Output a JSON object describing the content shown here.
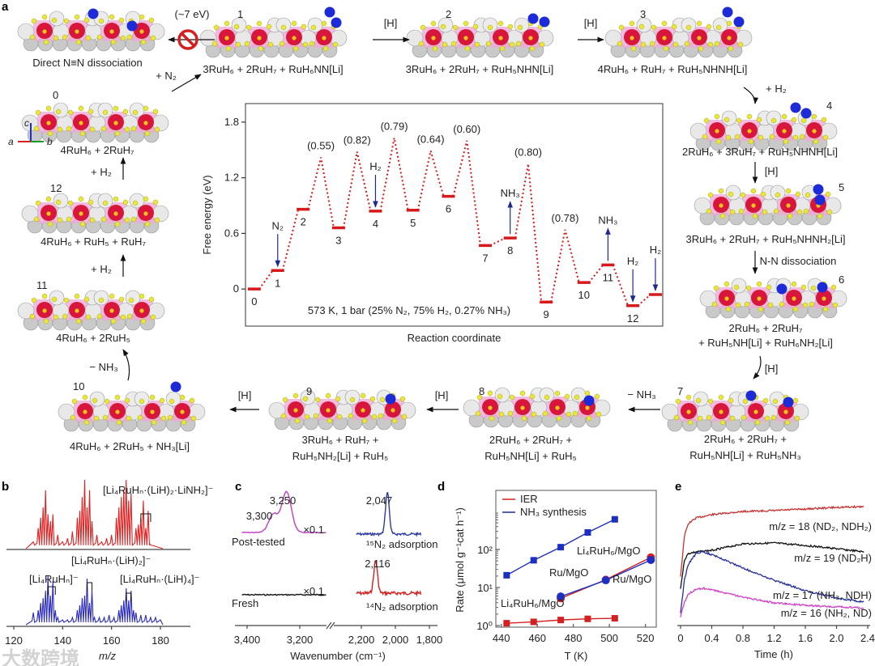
{
  "panel_labels": {
    "a": "a",
    "b": "b",
    "c": "c",
    "d": "d",
    "e": "e"
  },
  "panel_a": {
    "direct": {
      "caption": "Direct N≡N dissociation",
      "energy": "(~7 eV)"
    },
    "axes": {
      "a": "a",
      "b": "b",
      "c": "c"
    },
    "states": [
      {
        "id": "0",
        "formula": [
          "4RuH₆ + 2RuH₇"
        ]
      },
      {
        "id": "1",
        "formula": [
          "3RuH₆ + 2RuH₇ + RuH₆NN[Li]"
        ]
      },
      {
        "id": "2",
        "formula": [
          "3RuH₆ + 2RuH₇ + RuH₅NHN[Li]"
        ]
      },
      {
        "id": "3",
        "formula": [
          "4RuH₆ + RuH₇ + RuH₅NHNH[Li]"
        ]
      },
      {
        "id": "4",
        "formula": [
          "2RuH₆ + 3RuH₇ + RuH₅NHNH[Li]"
        ]
      },
      {
        "id": "5",
        "formula": [
          "3RuH₆ + 2RuH₇ + RuH₅NHNH₂[Li]"
        ]
      },
      {
        "id": "6",
        "formula": [
          "2RuH₆ + 2RuH₇",
          "+ RuH₅NH[Li] + RuH₆NH₂[Li]"
        ]
      },
      {
        "id": "7",
        "formula": [
          "2RuH₆ + 2RuH₇ +",
          "RuH₅NH[Li] + RuH₅NH₃"
        ]
      },
      {
        "id": "8",
        "formula": [
          "2RuH₆ + 2RuH₇ +",
          "RuH₅NH[Li] + RuH₅"
        ]
      },
      {
        "id": "9",
        "formula": [
          "3RuH₆ + RuH₇ +",
          "RuH₅NH₂[Li] + RuH₅"
        ]
      },
      {
        "id": "10",
        "formula": [
          "4RuH₆ + 2RuH₅ + NH₃[Li]"
        ]
      },
      {
        "id": "11",
        "formula": [
          "4RuH₆ + 2RuH₅"
        ]
      },
      {
        "id": "12",
        "formula": [
          "4RuH₆ + RuH₅ + RuH₇"
        ]
      }
    ],
    "steps": [
      "+ N₂",
      "[H]",
      "[H]",
      "+ H₂",
      "[H]",
      "N-N dissociation",
      "[H]",
      "− NH₃",
      "[H]",
      "[H]",
      "− NH₃",
      "+ H₂",
      "+ H₂"
    ]
  },
  "watermark": "大数跨境",
  "chart_data": [
    {
      "panel": "a",
      "type": "line",
      "title": "",
      "xlabel": "Reaction coordinate",
      "ylabel": "Free energy (eV)",
      "ylim": [
        -0.4,
        2.0
      ],
      "xlim": [
        -0.3,
        13.95
      ],
      "yticks": [
        0,
        0.6,
        1.2,
        1.8
      ],
      "ytick_labels": [
        "0",
        "0.6",
        "1.2",
        "1.8"
      ],
      "annotation": "573 K, 1 bar (25% N₂, 75% H₂, 0.27% NH₃)",
      "levels": [
        {
          "label": "0",
          "x": 0,
          "G": 0
        },
        {
          "label": "1",
          "x": 0.8,
          "G": 0.2
        },
        {
          "label": "2",
          "x": 1.67,
          "G": 0.86
        },
        {
          "label": "3",
          "x": 2.88,
          "G": 0.66
        },
        {
          "label": "4",
          "x": 4.14,
          "G": 0.84
        },
        {
          "label": "5",
          "x": 5.42,
          "G": 0.85
        },
        {
          "label": "6",
          "x": 6.63,
          "G": 1.0
        },
        {
          "label": "7",
          "x": 7.89,
          "G": 0.47
        },
        {
          "label": "8",
          "x": 8.74,
          "G": 0.55
        },
        {
          "label": "9",
          "x": 9.97,
          "G": -0.14
        },
        {
          "label": "10",
          "x": 11.26,
          "G": 0.07
        },
        {
          "label": "11",
          "x": 12.08,
          "G": 0.26
        },
        {
          "label": "12",
          "x": 12.93,
          "G": -0.18
        },
        {
          "label": "",
          "x": 13.7,
          "G": -0.06
        }
      ],
      "barriers": [
        {
          "after_level": 2,
          "G": 1.42,
          "label": "(0.55)"
        },
        {
          "after_level": 3,
          "G": 1.48,
          "label": "(0.82)"
        },
        {
          "after_level": 4,
          "G": 1.63,
          "label": "(0.79)"
        },
        {
          "after_level": 5,
          "G": 1.49,
          "label": "(0.64)"
        },
        {
          "after_level": 6,
          "G": 1.6,
          "label": "(0.60)"
        },
        {
          "after_level": 8,
          "G": 1.35,
          "label": "(0.80)"
        },
        {
          "after_level": 9,
          "G": 0.64,
          "label": "(0.78)"
        }
      ],
      "species_arrows": [
        {
          "label": "N₂",
          "level": 1,
          "dir": "down"
        },
        {
          "label": "H₂",
          "level": 4,
          "dir": "down"
        },
        {
          "label": "NH₃",
          "level": 8,
          "dir": "up"
        },
        {
          "label": "NH₃",
          "level": 11,
          "dir": "up"
        },
        {
          "label": "H₂",
          "level": 12,
          "dir": "down"
        },
        {
          "label": "H₂",
          "level": 13,
          "dir": "down"
        }
      ],
      "colors": {
        "level": "#d7191c",
        "arrow": "#1f2a8c"
      }
    },
    {
      "panel": "b",
      "type": "line",
      "xlabel": "m/z",
      "xlim": [
        118,
        182
      ],
      "xticks": [
        120,
        140,
        160,
        180
      ],
      "series": [
        {
          "name": "red",
          "color": "#e02020",
          "peaks": [
            [
              128,
              0.1
            ],
            [
              130,
              0.3
            ],
            [
              131,
              0.45
            ],
            [
              132,
              0.6
            ],
            [
              133,
              0.85
            ],
            [
              134,
              0.5
            ],
            [
              135,
              0.4
            ],
            [
              136,
              0.5
            ],
            [
              138,
              0.2
            ],
            [
              140,
              0.1
            ],
            [
              142,
              0.15
            ],
            [
              144,
              0.25
            ],
            [
              146,
              0.45
            ],
            [
              147,
              0.55
            ],
            [
              148,
              0.75
            ],
            [
              149,
              1.0
            ],
            [
              150,
              0.6
            ],
            [
              151,
              0.85
            ],
            [
              152,
              0.4
            ],
            [
              154,
              0.2
            ],
            [
              156,
              0.1
            ],
            [
              158,
              0.15
            ],
            [
              160,
              0.2
            ],
            [
              162,
              0.45
            ],
            [
              163,
              0.6
            ],
            [
              164,
              0.75
            ],
            [
              165,
              0.85
            ],
            [
              166,
              1.0
            ],
            [
              167,
              0.7
            ],
            [
              168,
              0.8
            ],
            [
              170,
              0.3
            ],
            [
              171,
              0.35
            ],
            [
              172,
              0.45
            ],
            [
              173,
              0.7
            ],
            [
              174,
              0.3
            ],
            [
              175,
              0.55
            ],
            [
              176,
              0.05
            ]
          ]
        },
        {
          "name": "blue",
          "color": "#2a2ac0",
          "peaks": [
            [
              128,
              0.25
            ],
            [
              130,
              0.3
            ],
            [
              131,
              0.45
            ],
            [
              132,
              0.55
            ],
            [
              133,
              0.7
            ],
            [
              134,
              1.0
            ],
            [
              135,
              0.6
            ],
            [
              136,
              0.9
            ],
            [
              137,
              0.3
            ],
            [
              138,
              0.15
            ],
            [
              140,
              0.1
            ],
            [
              142,
              0.1
            ],
            [
              144,
              0.15
            ],
            [
              146,
              0.3
            ],
            [
              147,
              0.4
            ],
            [
              148,
              0.55
            ],
            [
              149,
              0.6
            ],
            [
              150,
              0.95
            ],
            [
              151,
              0.45
            ],
            [
              152,
              0.7
            ],
            [
              153,
              0.15
            ],
            [
              155,
              0.15
            ],
            [
              157,
              0.15
            ],
            [
              159,
              0.2
            ],
            [
              161,
              0.15
            ],
            [
              163,
              0.3
            ],
            [
              164,
              0.4
            ],
            [
              165,
              0.5
            ],
            [
              166,
              0.75
            ],
            [
              167,
              0.5
            ],
            [
              168,
              0.7
            ],
            [
              169,
              0.3
            ],
            [
              170,
              0.25
            ],
            [
              172,
              0.2
            ],
            [
              174,
              0.2
            ],
            [
              176,
              0.15
            ],
            [
              178,
              0.15
            ],
            [
              180,
              0.1
            ]
          ]
        }
      ],
      "annotations": [
        "[Li₄RuHₙ·(LiH)₂·LiNH₂]⁻",
        "[Li₄RuHₙ·(LiH)₂]⁻",
        "[Li₄RuHₙ]⁻",
        "[Li₄RuHₙ·(LiH)₄]⁻"
      ]
    },
    {
      "panel": "c",
      "type": "line",
      "xlabel": "Wavenumber (cm⁻¹)",
      "xticks": [
        3400,
        3200,
        2200,
        2000,
        1800
      ],
      "xtick_labels": [
        "3,400",
        "3,200",
        "2,200",
        "2,000",
        "1,800"
      ],
      "series": [
        {
          "name": "Post-tested",
          "color": "#c03cc8",
          "range": [
            3420,
            3100
          ],
          "peaks": [
            [
              3300,
              0.45
            ],
            [
              3250,
              1.0
            ]
          ],
          "scale": "×0.1",
          "peak_labels": [
            "3,300",
            "3,250"
          ]
        },
        {
          "name": "¹⁵N₂ adsorption",
          "color": "#2b3aa0",
          "range": [
            2230,
            1850
          ],
          "peaks": [
            [
              2047,
              1.0
            ]
          ],
          "peak_labels": [
            "2,047"
          ]
        },
        {
          "name": "Fresh",
          "color": "#111111",
          "range": [
            3420,
            3100
          ],
          "peaks": [],
          "scale": "×0.1"
        },
        {
          "name": "¹⁴N₂ adsorption",
          "color": "#d42020",
          "range": [
            2230,
            1850
          ],
          "peaks": [
            [
              2116,
              1.0
            ]
          ],
          "peak_labels": [
            "2,116"
          ]
        }
      ]
    },
    {
      "panel": "d",
      "type": "scatter",
      "xlabel": "T (K)",
      "ylabel": "Rate (μmol g⁻¹cat h⁻¹)",
      "yscale": "log",
      "xlim": [
        437,
        526
      ],
      "ylim_log10": [
        0,
        3.5
      ],
      "xticks": [
        440,
        460,
        480,
        500,
        520
      ],
      "yticks": [
        "10⁰",
        "10¹",
        "10²"
      ],
      "legend": [
        {
          "label": "IER",
          "color": "#d42020"
        },
        {
          "label": "NH₃ synthesis",
          "color": "#1f2a8c"
        }
      ],
      "legend_position": "top-left",
      "series": [
        {
          "name": "Li₄RuH₆/MgO NH₃ synthesis",
          "label": "Li₄RuH₆/MgO",
          "color": "#1c2fc0",
          "marker": "square",
          "x": [
            443,
            458,
            473,
            488,
            503
          ],
          "y": [
            21,
            52,
            115,
            280,
            620
          ]
        },
        {
          "name": "Li₄RuH₆/MgO IER",
          "label": "Li₄RuH₆/MgO",
          "color": "#d42020",
          "marker": "square",
          "x": [
            443,
            458,
            473,
            488,
            503
          ],
          "y": [
            1.15,
            1.25,
            1.4,
            1.5,
            1.55
          ]
        },
        {
          "name": "Ru/MgO IER",
          "label": "Ru/MgO",
          "color": "#d42020",
          "marker": "circle",
          "x": [
            473,
            498,
            523
          ],
          "y": [
            5.2,
            16,
            62
          ]
        },
        {
          "name": "Ru/MgO NH₃ synthesis",
          "label": "Ru/MgO",
          "color": "#1c2fc0",
          "marker": "circle",
          "x": [
            473,
            498,
            523
          ],
          "y": [
            5.8,
            15.5,
            53
          ]
        }
      ]
    },
    {
      "panel": "e",
      "type": "line",
      "xlabel": "Time (h)",
      "xlim": [
        0,
        2.4
      ],
      "ylim": [
        0,
        160
      ],
      "xticks": [
        0,
        0.4,
        0.8,
        1.2,
        1.6,
        2.0,
        2.4
      ],
      "xtick_labels": [
        "0",
        "0.4",
        "0.8",
        "1.2",
        "1.6",
        "2.0",
        "2.4"
      ],
      "series": [
        {
          "name": "m/z = 18 (ND₂, NDH₂)",
          "color": "#c83232",
          "t": [
            0,
            0.05,
            0.1,
            0.2,
            0.4,
            0.8,
            1.2,
            1.6,
            2.0,
            2.35
          ],
          "y": [
            60,
            110,
            125,
            132,
            136,
            140,
            141,
            143,
            145,
            146
          ]
        },
        {
          "name": "m/z = 19 (ND₂H)",
          "color": "#111111",
          "t": [
            0,
            0.05,
            0.1,
            0.2,
            0.4,
            0.8,
            1.2,
            1.6,
            2.0,
            2.35
          ],
          "y": [
            45,
            80,
            88,
            90,
            92,
            100,
            101,
            98,
            94,
            90
          ]
        },
        {
          "name": "m/z = 17 (NH₃, NDH)",
          "color": "#26309a",
          "t": [
            0,
            0.05,
            0.1,
            0.2,
            0.3,
            0.5,
            0.8,
            1.2,
            1.6,
            2.0,
            2.35
          ],
          "y": [
            15,
            55,
            75,
            88,
            90,
            83,
            70,
            55,
            42,
            33,
            28
          ]
        },
        {
          "name": "m/z = 16 (NH₂, ND)",
          "color": "#d040c8",
          "t": [
            0,
            0.05,
            0.1,
            0.2,
            0.3,
            0.5,
            0.8,
            1.2,
            1.6,
            2.0,
            2.35
          ],
          "y": [
            10,
            28,
            38,
            44,
            45,
            41,
            34,
            27,
            24,
            22,
            21
          ]
        }
      ]
    }
  ]
}
